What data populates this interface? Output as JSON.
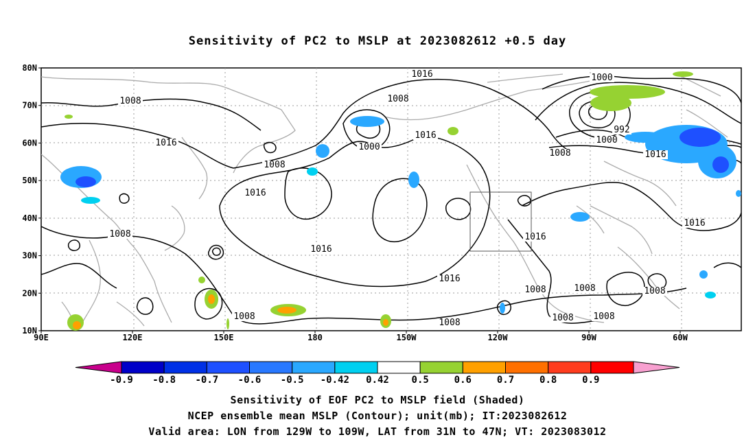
{
  "title": "Sensitivity of PC2 to MSLP at 2023082612 +0.5 day",
  "captions": [
    "Sensitivity of EOF PC2 to MSLP field (Shaded)",
    "NCEP ensemble mean MSLP (Contour); unit(mb); IT:2023082612",
    "Valid area: LON from 129W to 109W, LAT from 31N to 47N; VT: 2023083012"
  ],
  "map": {
    "lat_labels": [
      "80N",
      "70N",
      "60N",
      "50N",
      "40N",
      "30N",
      "20N",
      "10N"
    ],
    "lon_labels": [
      "90E",
      "120E",
      "150E",
      "180",
      "150W",
      "120W",
      "90W",
      "60W"
    ],
    "contour_labels": [
      {
        "text": "1016"
      },
      {
        "text": "1008"
      },
      {
        "text": "1008"
      },
      {
        "text": "1016"
      },
      {
        "text": "1000"
      },
      {
        "text": "1016"
      },
      {
        "text": "1008"
      },
      {
        "text": "1016"
      },
      {
        "text": "1008"
      },
      {
        "text": "1000"
      },
      {
        "text": "992"
      },
      {
        "text": "1000"
      },
      {
        "text": "1008"
      },
      {
        "text": "1016"
      },
      {
        "text": "1016"
      },
      {
        "text": "1016"
      },
      {
        "text": "1016"
      },
      {
        "text": "1016"
      },
      {
        "text": "1008"
      },
      {
        "text": "1008"
      },
      {
        "text": "1008"
      },
      {
        "text": "1008"
      },
      {
        "text": "1008"
      },
      {
        "text": "1008"
      },
      {
        "text": "1008"
      }
    ],
    "valid_area_box": {
      "lon_from": "129W",
      "lon_to": "109W",
      "lat_from": "31N",
      "lat_to": "47N"
    }
  },
  "colorbar": {
    "labels": [
      "-0.9",
      "-0.8",
      "-0.7",
      "-0.6",
      "-0.5",
      "-0.42",
      "0.42",
      "0.5",
      "0.6",
      "0.7",
      "0.8",
      "0.9"
    ],
    "colors": [
      "#c8008c",
      "#0000c8",
      "#0030e6",
      "#1e50ff",
      "#2878ff",
      "#2aa8ff",
      "#00d0f0",
      "#ffffff",
      "#96d232",
      "#ffa000",
      "#ff7000",
      "#ff3c1e",
      "#ff0000",
      "#f8a0d0"
    ]
  }
}
